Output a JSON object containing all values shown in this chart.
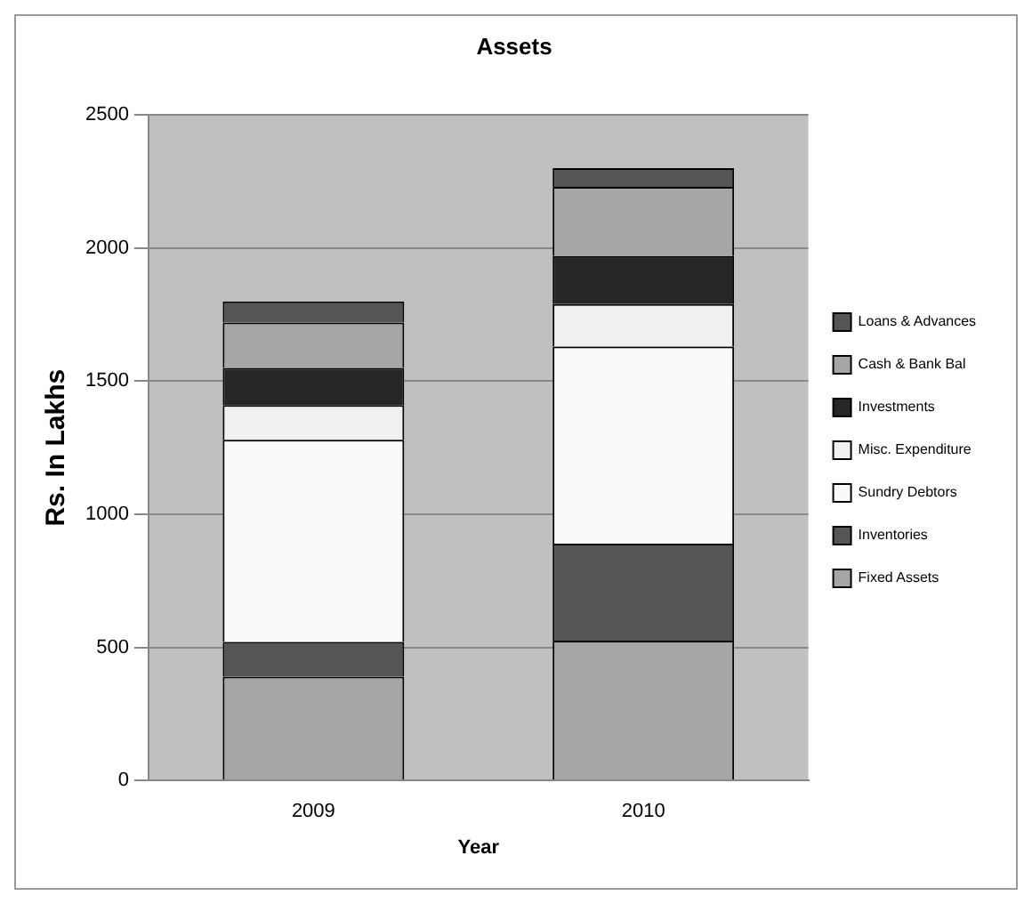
{
  "chart_data": {
    "type": "bar",
    "title": "Assets",
    "xlabel": "Year",
    "ylabel": "Rs. In Lakhs",
    "categories": [
      "2009",
      "2010"
    ],
    "stacked": true,
    "series": [
      {
        "name": "Fixed Assets",
        "color": "#a6a6a6",
        "values": [
          390,
          525
        ]
      },
      {
        "name": "Inventories",
        "color": "#555555",
        "values": [
          130,
          365
        ]
      },
      {
        "name": "Sundry Debtors",
        "color": "#fafafa",
        "values": [
          760,
          740
        ]
      },
      {
        "name": "Misc. Expenditure",
        "color": "#f0f0f0",
        "values": [
          130,
          160
        ]
      },
      {
        "name": "Investments",
        "color": "#262626",
        "values": [
          140,
          180
        ]
      },
      {
        "name": "Cash & Bank Bal",
        "color": "#a6a6a6",
        "values": [
          170,
          260
        ]
      },
      {
        "name": "Loans & Advances",
        "color": "#555555",
        "values": [
          80,
          70
        ]
      }
    ],
    "ylim": [
      0,
      2500
    ],
    "yticks": [
      0,
      500,
      1000,
      1500,
      2000,
      2500
    ],
    "grid": "y",
    "legend": "right"
  }
}
